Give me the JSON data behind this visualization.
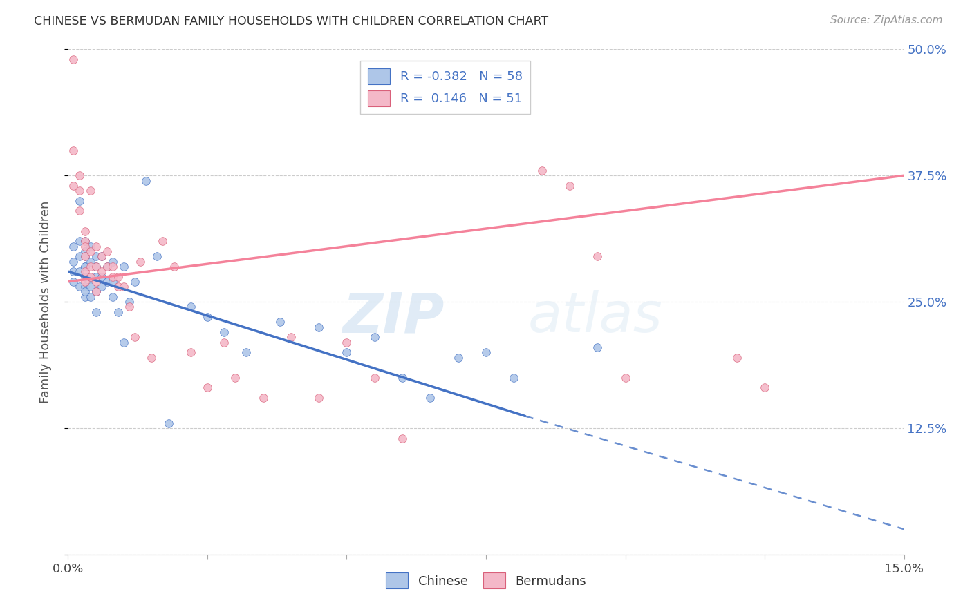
{
  "title": "CHINESE VS BERMUDAN FAMILY HOUSEHOLDS WITH CHILDREN CORRELATION CHART",
  "source": "Source: ZipAtlas.com",
  "ylabel": "Family Households with Children",
  "x_min": 0.0,
  "x_max": 0.15,
  "y_min": 0.0,
  "y_max": 0.5,
  "x_ticks": [
    0.0,
    0.025,
    0.05,
    0.075,
    0.1,
    0.125,
    0.15
  ],
  "x_tick_labels": [
    "0.0%",
    "",
    "",
    "",
    "",
    "",
    "15.0%"
  ],
  "y_ticks": [
    0.0,
    0.125,
    0.25,
    0.375,
    0.5
  ],
  "y_tick_labels_right": [
    "",
    "12.5%",
    "25.0%",
    "37.5%",
    "50.0%"
  ],
  "chinese_color": "#aec6e8",
  "bermudan_color": "#f4b8c8",
  "chinese_line_color": "#4472c4",
  "bermudan_line_color": "#f4829a",
  "chinese_R": -0.382,
  "chinese_N": 58,
  "bermudan_R": 0.146,
  "bermudan_N": 51,
  "watermark_zip": "ZIP",
  "watermark_atlas": "atlas",
  "chinese_x": [
    0.001,
    0.001,
    0.001,
    0.001,
    0.002,
    0.002,
    0.002,
    0.002,
    0.002,
    0.003,
    0.003,
    0.003,
    0.003,
    0.003,
    0.003,
    0.003,
    0.003,
    0.003,
    0.004,
    0.004,
    0.004,
    0.004,
    0.004,
    0.005,
    0.005,
    0.005,
    0.005,
    0.005,
    0.006,
    0.006,
    0.006,
    0.007,
    0.007,
    0.008,
    0.008,
    0.008,
    0.009,
    0.01,
    0.01,
    0.011,
    0.012,
    0.014,
    0.016,
    0.018,
    0.022,
    0.025,
    0.028,
    0.032,
    0.038,
    0.045,
    0.05,
    0.055,
    0.06,
    0.065,
    0.07,
    0.075,
    0.08,
    0.095
  ],
  "chinese_y": [
    0.29,
    0.305,
    0.27,
    0.28,
    0.31,
    0.295,
    0.28,
    0.265,
    0.35,
    0.3,
    0.31,
    0.295,
    0.285,
    0.275,
    0.265,
    0.255,
    0.285,
    0.26,
    0.305,
    0.29,
    0.275,
    0.265,
    0.255,
    0.295,
    0.285,
    0.275,
    0.26,
    0.24,
    0.295,
    0.275,
    0.265,
    0.285,
    0.27,
    0.29,
    0.27,
    0.255,
    0.24,
    0.285,
    0.21,
    0.25,
    0.27,
    0.37,
    0.295,
    0.13,
    0.245,
    0.235,
    0.22,
    0.2,
    0.23,
    0.225,
    0.2,
    0.215,
    0.175,
    0.155,
    0.195,
    0.2,
    0.175,
    0.205
  ],
  "bermudan_x": [
    0.001,
    0.001,
    0.001,
    0.002,
    0.002,
    0.002,
    0.003,
    0.003,
    0.003,
    0.003,
    0.003,
    0.003,
    0.004,
    0.004,
    0.004,
    0.004,
    0.005,
    0.005,
    0.005,
    0.005,
    0.006,
    0.006,
    0.007,
    0.007,
    0.008,
    0.008,
    0.009,
    0.009,
    0.01,
    0.011,
    0.012,
    0.013,
    0.015,
    0.017,
    0.019,
    0.022,
    0.025,
    0.028,
    0.03,
    0.035,
    0.04,
    0.045,
    0.05,
    0.055,
    0.06,
    0.085,
    0.09,
    0.095,
    0.1,
    0.12,
    0.125
  ],
  "bermudan_y": [
    0.49,
    0.4,
    0.365,
    0.375,
    0.36,
    0.34,
    0.32,
    0.31,
    0.305,
    0.295,
    0.28,
    0.27,
    0.36,
    0.3,
    0.285,
    0.275,
    0.305,
    0.285,
    0.27,
    0.26,
    0.295,
    0.28,
    0.3,
    0.285,
    0.285,
    0.275,
    0.275,
    0.265,
    0.265,
    0.245,
    0.215,
    0.29,
    0.195,
    0.31,
    0.285,
    0.2,
    0.165,
    0.21,
    0.175,
    0.155,
    0.215,
    0.155,
    0.21,
    0.175,
    0.115,
    0.38,
    0.365,
    0.295,
    0.175,
    0.195,
    0.165
  ],
  "chinese_line_x_solid_start": 0.0,
  "chinese_line_x_solid_end": 0.082,
  "chinese_line_x_dash_end": 0.15,
  "chinese_line_y_at_0": 0.28,
  "chinese_line_y_at_082": 0.137,
  "chinese_line_y_at_15": 0.025,
  "bermudan_line_y_at_0": 0.27,
  "bermudan_line_y_at_15": 0.375
}
